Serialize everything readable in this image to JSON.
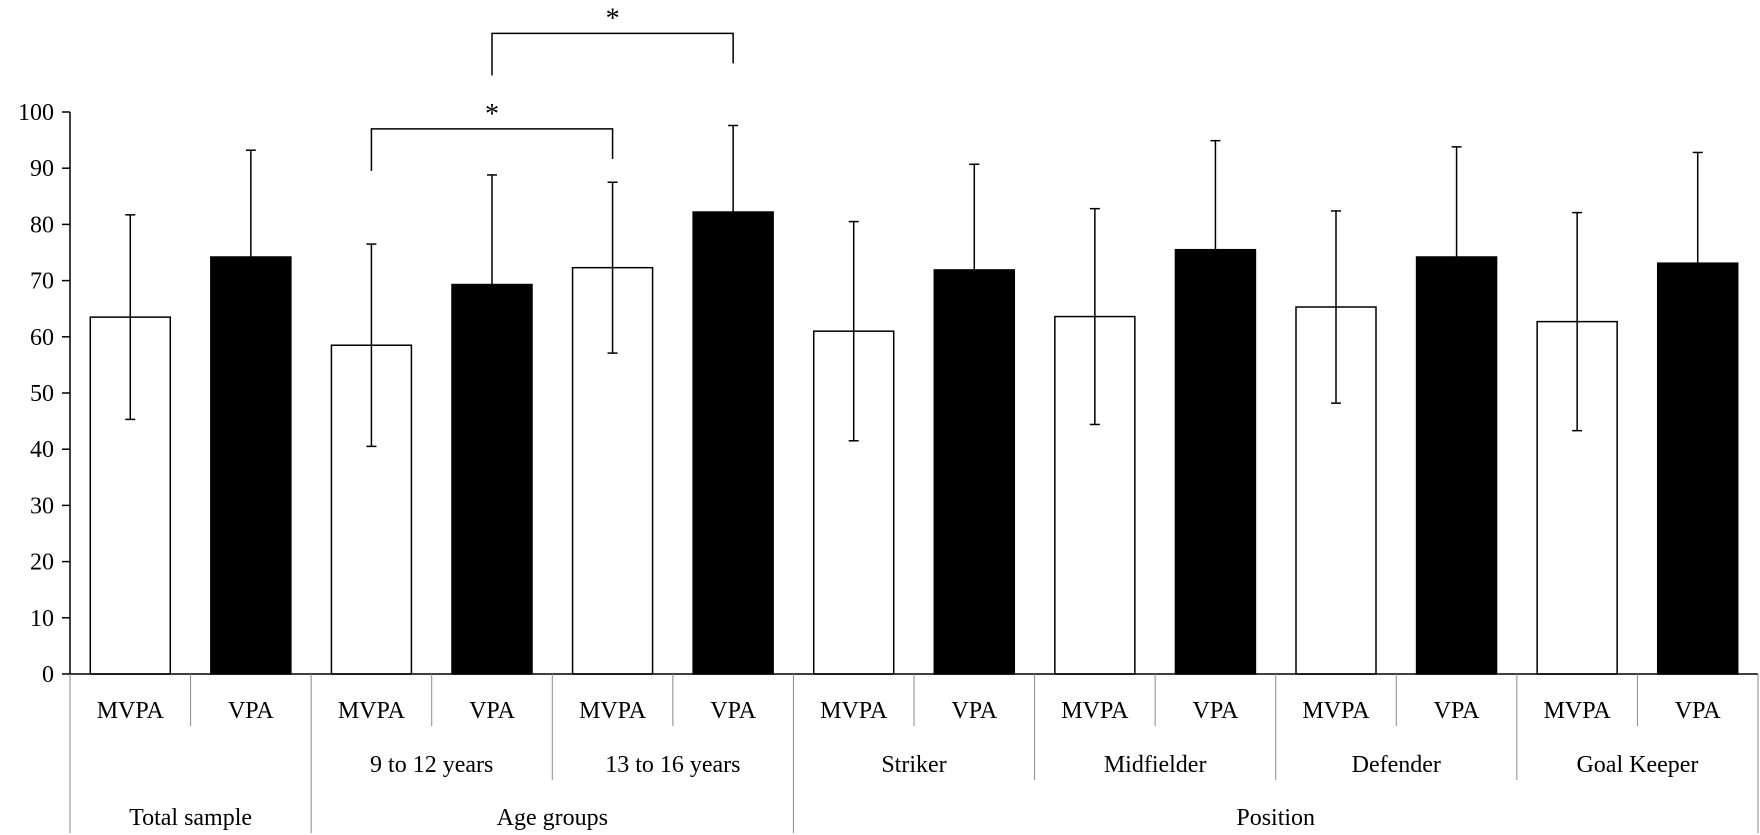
{
  "chart_data": {
    "type": "bar",
    "y_ticks": [
      "0",
      "10",
      "20",
      "30",
      "40",
      "50",
      "60",
      "70",
      "80",
      "90",
      "100"
    ],
    "ylim": [
      0,
      100
    ],
    "grid": false,
    "legend": "none",
    "colors": {
      "MVPA": "#ffffff",
      "VPA": "#000000",
      "outline": "#000000"
    },
    "bars": [
      {
        "label": "MVPA",
        "value": 63.5,
        "error": 18.2
      },
      {
        "label": "VPA",
        "value": 74.2,
        "error": 19.0
      },
      {
        "label": "MVPA",
        "value": 58.5,
        "error": 18.0
      },
      {
        "label": "VPA",
        "value": 69.3,
        "error": 19.5
      },
      {
        "label": "MVPA",
        "value": 72.3,
        "error": 15.2
      },
      {
        "label": "VPA",
        "value": 82.2,
        "error": 15.4
      },
      {
        "label": "MVPA",
        "value": 61.0,
        "error": 19.5
      },
      {
        "label": "VPA",
        "value": 71.9,
        "error": 18.8
      },
      {
        "label": "MVPA",
        "value": 63.6,
        "error": 19.2
      },
      {
        "label": "VPA",
        "value": 75.5,
        "error": 19.4
      },
      {
        "label": "MVPA",
        "value": 65.3,
        "error": 17.1
      },
      {
        "label": "VPA",
        "value": 74.2,
        "error": 19.6
      },
      {
        "label": "MVPA",
        "value": 62.7,
        "error": 19.4
      },
      {
        "label": "VPA",
        "value": 73.1,
        "error": 19.7
      }
    ],
    "subgroups": [
      {
        "label": "",
        "span": [
          0,
          1
        ]
      },
      {
        "label": "9 to 12 years",
        "span": [
          2,
          3
        ]
      },
      {
        "label": "13 to 16 years",
        "span": [
          4,
          5
        ]
      },
      {
        "label": "Striker",
        "span": [
          6,
          7
        ]
      },
      {
        "label": "Midfielder",
        "span": [
          8,
          9
        ]
      },
      {
        "label": "Defender",
        "span": [
          10,
          11
        ]
      },
      {
        "label": "Goal Keeper",
        "span": [
          12,
          13
        ]
      }
    ],
    "groups": [
      {
        "label": "Total sample",
        "span": [
          0,
          1
        ]
      },
      {
        "label": "Age groups",
        "span": [
          2,
          5
        ]
      },
      {
        "label": "Position",
        "span": [
          6,
          13
        ]
      }
    ],
    "significance": [
      {
        "from": 2,
        "to": 4,
        "bracket_y": 97,
        "label": "*"
      },
      {
        "from": 3,
        "to": 5,
        "bracket_y": 114,
        "label": "*"
      }
    ]
  }
}
